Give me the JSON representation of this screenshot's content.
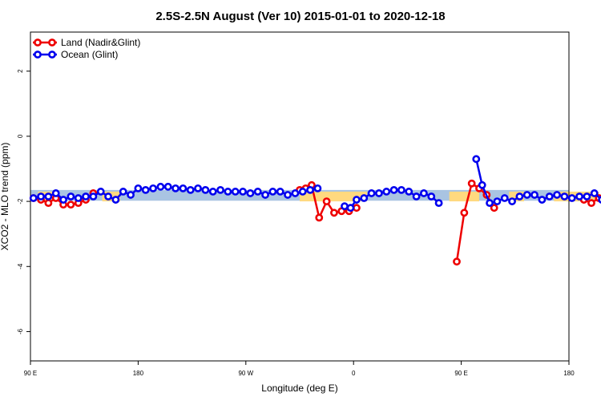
{
  "chart_data": {
    "type": "line",
    "title": "2.5S-2.5N August (Ver 10)   2015-01-01 to 2020-12-18",
    "xlabel": "Longitude (deg E)",
    "ylabel": "XCO2 - MLO trend (ppm)",
    "xlim": [
      90,
      450
    ],
    "ylim": [
      -6.9,
      3.2
    ],
    "x_ticks": [
      {
        "value": 90,
        "label": "90 E"
      },
      {
        "value": 180,
        "label": "180"
      },
      {
        "value": 270,
        "label": "90 W"
      },
      {
        "value": 360,
        "label": "0"
      },
      {
        "value": 450,
        "label": "90 E"
      },
      {
        "value": 540,
        "label": "180"
      }
    ],
    "y_ticks": [
      {
        "value": 2,
        "label": "2"
      },
      {
        "value": 0,
        "label": "0"
      },
      {
        "value": -2,
        "label": "-2"
      },
      {
        "value": -4,
        "label": "-4"
      },
      {
        "value": -6,
        "label": "-6"
      }
    ],
    "display_xlim": [
      90,
      540
    ],
    "legend_position": "top-left",
    "bands": [
      {
        "name": "land-band",
        "color": "#FFD97F",
        "y_low": -2.0,
        "y_high": -1.7,
        "segments": [
          [
            95,
            108
          ],
          [
            138,
            150
          ],
          [
            270,
            300
          ],
          [
            300,
            315
          ],
          [
            370,
            390
          ],
          [
            410,
            420
          ],
          [
            440,
            470
          ],
          [
            480,
            488
          ]
        ]
      },
      {
        "name": "ocean-band",
        "color": "#A9C4E2",
        "y_low": -1.98,
        "y_high": -1.65
      }
    ],
    "series": [
      {
        "name": "Land (Nadir&Glint)",
        "color": "#EE0000",
        "points": [
          [
            92,
            -1.9
          ],
          [
            97,
            -1.95
          ],
          [
            102,
            -2.05
          ],
          [
            107,
            -1.9
          ],
          [
            112,
            -2.1
          ],
          [
            117,
            -2.1
          ],
          [
            122,
            -2.05
          ],
          [
            127,
            -1.95
          ],
          [
            132,
            -1.75
          ],
          null,
          [
            270,
            -1.65
          ],
          [
            274,
            -1.6
          ],
          [
            278,
            -1.5
          ],
          [
            283,
            -2.5
          ],
          [
            288,
            -2.0
          ],
          [
            293,
            -2.35
          ],
          [
            298,
            -2.3
          ],
          [
            303,
            -2.3
          ],
          [
            308,
            -2.2
          ],
          null,
          [
            375,
            -3.85
          ],
          [
            380,
            -2.35
          ],
          [
            385,
            -1.45
          ],
          [
            390,
            -1.6
          ],
          [
            395,
            -1.8
          ],
          [
            400,
            -2.2
          ],
          null,
          [
            460,
            -1.95
          ],
          [
            465,
            -2.05
          ],
          [
            470,
            -1.9
          ],
          [
            475,
            -2.1
          ],
          [
            480,
            -2.1
          ],
          [
            485,
            -2.05
          ],
          [
            490,
            -1.75
          ]
        ]
      },
      {
        "name": "Ocean (Glint)",
        "color": "#0000EE",
        "points": [
          [
            92,
            -1.9
          ],
          [
            97,
            -1.85
          ],
          [
            102,
            -1.85
          ],
          [
            107,
            -1.75
          ],
          [
            112,
            -1.95
          ],
          [
            117,
            -1.85
          ],
          [
            122,
            -1.9
          ],
          [
            127,
            -1.85
          ],
          [
            132,
            -1.85
          ],
          [
            137,
            -1.7
          ],
          [
            142,
            -1.85
          ],
          [
            147,
            -1.95
          ],
          [
            152,
            -1.7
          ],
          [
            157,
            -1.8
          ],
          [
            162,
            -1.6
          ],
          [
            167,
            -1.65
          ],
          [
            172,
            -1.6
          ],
          [
            177,
            -1.55
          ],
          [
            182,
            -1.55
          ],
          [
            187,
            -1.6
          ],
          [
            192,
            -1.6
          ],
          [
            197,
            -1.65
          ],
          [
            202,
            -1.6
          ],
          [
            207,
            -1.65
          ],
          [
            212,
            -1.7
          ],
          [
            217,
            -1.65
          ],
          [
            222,
            -1.7
          ],
          [
            227,
            -1.7
          ],
          [
            232,
            -1.7
          ],
          [
            237,
            -1.75
          ],
          [
            242,
            -1.7
          ],
          [
            247,
            -1.8
          ],
          [
            252,
            -1.7
          ],
          [
            257,
            -1.7
          ],
          [
            262,
            -1.8
          ],
          [
            267,
            -1.75
          ],
          [
            272,
            -1.7
          ],
          [
            277,
            -1.65
          ],
          [
            282,
            -1.6
          ],
          null,
          [
            300,
            -2.15
          ],
          [
            304,
            -2.2
          ],
          [
            308,
            -1.95
          ],
          [
            313,
            -1.9
          ],
          [
            318,
            -1.75
          ],
          [
            323,
            -1.75
          ],
          [
            328,
            -1.7
          ],
          [
            333,
            -1.65
          ],
          [
            338,
            -1.65
          ],
          [
            343,
            -1.7
          ],
          [
            348,
            -1.85
          ],
          [
            353,
            -1.75
          ],
          [
            358,
            -1.85
          ],
          [
            363,
            -2.05
          ],
          null,
          [
            388,
            -0.7
          ],
          [
            392,
            -1.5
          ],
          [
            397,
            -2.05
          ],
          [
            402,
            -2.0
          ],
          [
            407,
            -1.9
          ],
          [
            412,
            -2.0
          ],
          [
            417,
            -1.85
          ],
          [
            422,
            -1.8
          ],
          [
            427,
            -1.8
          ],
          [
            432,
            -1.95
          ],
          [
            437,
            -1.85
          ],
          [
            442,
            -1.8
          ],
          [
            447,
            -1.85
          ],
          [
            452,
            -1.9
          ],
          [
            457,
            -1.85
          ],
          [
            462,
            -1.85
          ],
          [
            467,
            -1.75
          ],
          [
            472,
            -1.95
          ],
          [
            477,
            -1.9
          ],
          [
            482,
            -1.9
          ],
          [
            487,
            -1.85
          ],
          [
            492,
            -1.85
          ],
          [
            497,
            -1.7
          ],
          [
            502,
            -1.85
          ],
          [
            507,
            -1.9
          ],
          [
            512,
            -1.7
          ],
          [
            517,
            -1.75
          ],
          [
            522,
            -1.6
          ],
          [
            527,
            -1.65
          ],
          [
            532,
            -1.65
          ],
          [
            537,
            -1.55
          ]
        ]
      }
    ]
  }
}
